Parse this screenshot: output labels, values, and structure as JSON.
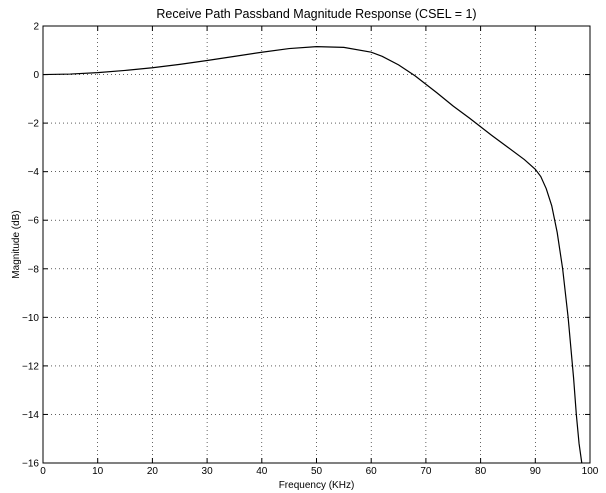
{
  "chart_data": {
    "type": "line",
    "title": "Receive Path Passband Magnitude Response (CSEL = 1)",
    "xlabel": "Frequency (KHz)",
    "ylabel": "Magnitude (dB)",
    "xlim": [
      0,
      100
    ],
    "ylim": [
      -16,
      2
    ],
    "grid": true,
    "x_ticks": [
      0,
      10,
      20,
      30,
      40,
      50,
      60,
      70,
      80,
      90,
      100
    ],
    "y_ticks": [
      2,
      0,
      -2,
      -4,
      -6,
      -8,
      -10,
      -12,
      -14,
      -16
    ],
    "series": [
      {
        "x": [
          0,
          5,
          10,
          15,
          20,
          25,
          30,
          35,
          40,
          45,
          50,
          55,
          60,
          62,
          65,
          68,
          70,
          72,
          75,
          78,
          80,
          82,
          85,
          88,
          90,
          91,
          92,
          93,
          94,
          95,
          96,
          97,
          97.5,
          98,
          98.5
        ],
        "y": [
          0,
          0.02,
          0.08,
          0.17,
          0.28,
          0.42,
          0.58,
          0.75,
          0.92,
          1.07,
          1.15,
          1.12,
          0.92,
          0.75,
          0.4,
          -0.05,
          -0.4,
          -0.75,
          -1.3,
          -1.8,
          -2.15,
          -2.5,
          -3.0,
          -3.5,
          -3.9,
          -4.2,
          -4.7,
          -5.4,
          -6.5,
          -8.0,
          -10.0,
          -12.5,
          -14.0,
          -15.2,
          -16.0
        ]
      }
    ],
    "colors": {
      "line": "#000000",
      "background": "#ffffff"
    }
  }
}
